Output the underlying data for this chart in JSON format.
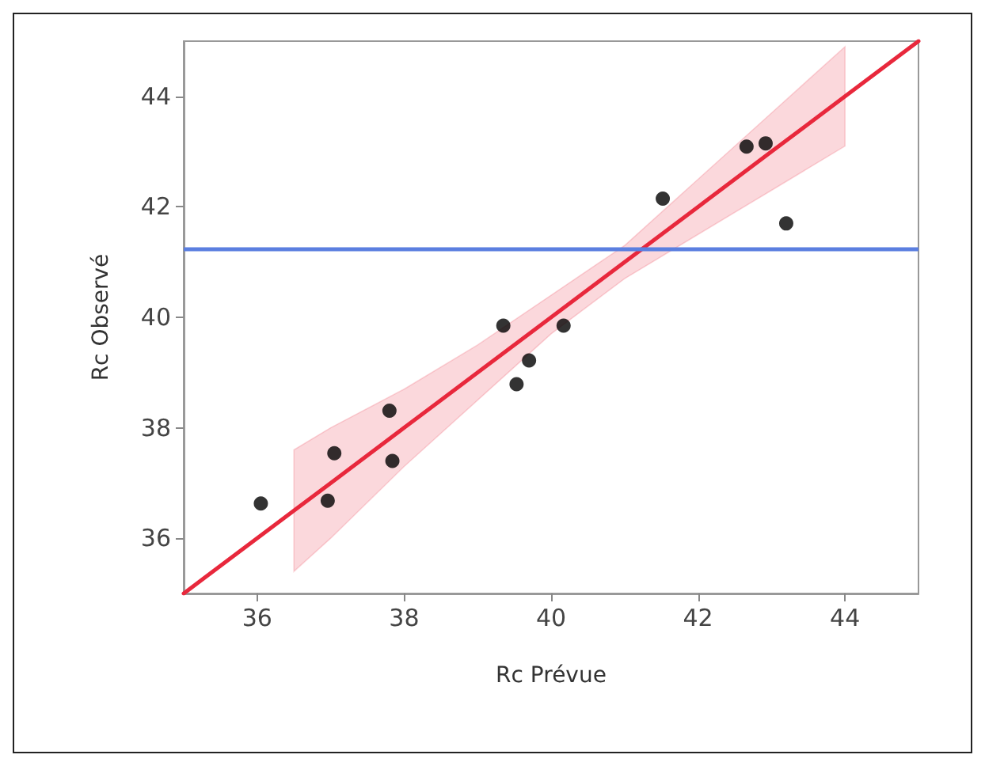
{
  "chart_data": {
    "type": "scatter",
    "xlabel": "Rc Prévue",
    "ylabel": "Rc Observé",
    "xlim": [
      35,
      45
    ],
    "ylim": [
      35,
      45
    ],
    "xticks": [
      36,
      38,
      40,
      42,
      44
    ],
    "yticks": [
      36,
      38,
      40,
      42,
      44
    ],
    "grid": false,
    "series": [
      {
        "marker": "circle",
        "color": "#000000",
        "x": [
          36.05,
          36.96,
          37.05,
          37.8,
          37.84,
          39.35,
          39.53,
          39.7,
          40.17,
          41.52,
          42.66,
          42.92,
          43.2
        ],
        "values": [
          36.63,
          36.68,
          37.54,
          38.31,
          37.4,
          39.85,
          38.79,
          39.22,
          39.85,
          42.15,
          43.09,
          43.15,
          41.7
        ]
      },
      {
        "type": "line",
        "color": "#e8283c",
        "line_style": "solid",
        "x": [
          35,
          36.5,
          37,
          38,
          39,
          40,
          41,
          42,
          43,
          44,
          45
        ],
        "values": [
          35,
          36.5,
          37,
          38,
          39,
          40,
          41,
          42,
          43,
          44,
          45
        ],
        "lower": [
          null,
          35.4,
          36.0,
          37.3,
          38.5,
          39.7,
          40.7,
          41.5,
          42.3,
          43.1,
          null
        ],
        "upper": [
          null,
          37.6,
          38.0,
          38.7,
          39.5,
          40.4,
          41.3,
          42.5,
          43.7,
          44.9,
          null
        ]
      }
    ],
    "ref_lines": [
      {
        "axis": "y",
        "value": 41.23,
        "color": "#5b7fe0",
        "line_style": "solid"
      }
    ]
  }
}
